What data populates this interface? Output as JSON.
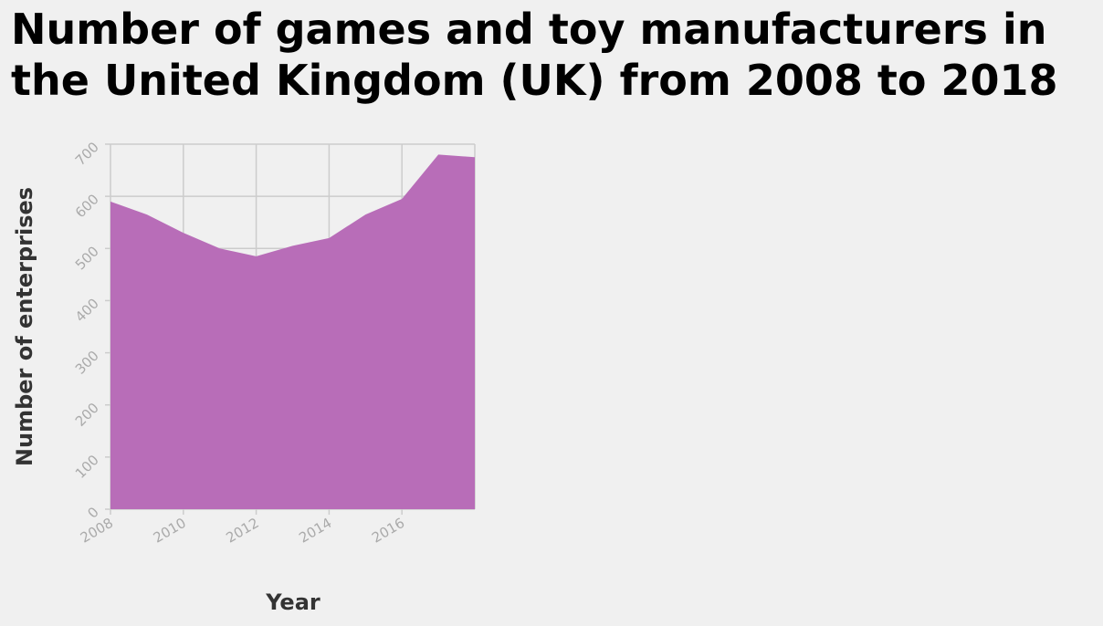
{
  "chart_data": {
    "type": "area",
    "title": "Number of games and toy manufacturers in the United Kingdom (UK) from 2008 to 2018",
    "xlabel": "Year",
    "ylabel": "Number of enterprises",
    "x": [
      2008,
      2009,
      2010,
      2011,
      2012,
      2013,
      2014,
      2015,
      2016,
      2017,
      2018
    ],
    "y": [
      590,
      565,
      530,
      500,
      485,
      505,
      520,
      565,
      595,
      680,
      675
    ],
    "xlim": [
      2008,
      2018
    ],
    "ylim": [
      0,
      700
    ],
    "xticks": [
      "2008",
      "2010",
      "2012",
      "2014",
      "2016"
    ],
    "yticks": [
      "0",
      "100",
      "200",
      "300",
      "400",
      "500",
      "600",
      "700"
    ],
    "grid": true,
    "fill_color": "#b86db8",
    "background": "#f0f0f0"
  }
}
